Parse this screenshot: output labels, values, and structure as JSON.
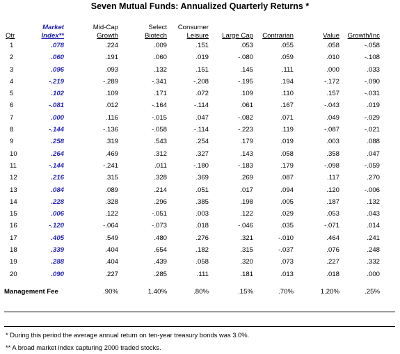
{
  "title": "Seven Mutual Funds:  Annualized Quarterly Returns *",
  "columns": [
    {
      "line1": "",
      "line2": "Qtr"
    },
    {
      "line1": "Market",
      "line2": "Index**"
    },
    {
      "line1": "Mid-Cap",
      "line2": "Growth"
    },
    {
      "line1": "Select",
      "line2": "Biotech"
    },
    {
      "line1": "Consumer",
      "line2": "Leisure"
    },
    {
      "line1": "",
      "line2": "Large Cap"
    },
    {
      "line1": "",
      "line2": "Contrarian"
    },
    {
      "line1": "",
      "line2": "Value"
    },
    {
      "line1": "",
      "line2": "Growth/Inc"
    }
  ],
  "rows": [
    [
      "1",
      ".078",
      ".224",
      ".009",
      ".151",
      ".053",
      ".055",
      ".058",
      "-.058"
    ],
    [
      "2",
      ".060",
      ".191",
      ".060",
      ".019",
      "-.080",
      ".059",
      ".010",
      "-.108"
    ],
    [
      "3",
      ".096",
      ".093",
      ".132",
      ".151",
      ".145",
      ".111",
      ".000",
      ".033"
    ],
    [
      "4",
      "-.219",
      "-.289",
      "-.341",
      "-.208",
      "-.195",
      ".194",
      "-.172",
      "-.090"
    ],
    [
      "5",
      ".102",
      ".109",
      ".171",
      ".072",
      ".109",
      ".110",
      ".157",
      "-.031"
    ],
    [
      "6",
      "-.081",
      ".012",
      "-.164",
      "-.114",
      ".061",
      ".167",
      "-.043",
      ".019"
    ],
    [
      "7",
      ".000",
      ".116",
      "-.015",
      ".047",
      "-.082",
      ".071",
      ".049",
      "-.029"
    ],
    [
      "8",
      "-.144",
      "-.136",
      "-.058",
      "-.114",
      "-.223",
      ".119",
      "-.087",
      "-.021"
    ],
    [
      "9",
      ".258",
      ".319",
      ".543",
      ".254",
      ".179",
      ".019",
      ".003",
      ".088"
    ],
    [
      "10",
      ".264",
      ".469",
      ".312",
      ".327",
      ".143",
      ".058",
      ".358",
      ".047"
    ],
    [
      "11",
      "-.144",
      "-.241",
      ".011",
      "-.180",
      "-.183",
      ".179",
      "-.098",
      "-.059"
    ],
    [
      "12",
      ".216",
      ".315",
      ".328",
      ".369",
      ".269",
      ".087",
      ".117",
      ".270"
    ],
    [
      "13",
      ".084",
      ".089",
      ".214",
      ".051",
      ".017",
      ".094",
      ".120",
      "-.006"
    ],
    [
      "14",
      ".228",
      ".328",
      ".296",
      ".385",
      ".198",
      ".005",
      ".187",
      ".132"
    ],
    [
      "15",
      ".006",
      ".122",
      "-.051",
      ".003",
      ".122",
      ".029",
      ".053",
      ".043"
    ],
    [
      "16",
      "-.120",
      "-.064",
      "-.073",
      ".018",
      "-.046",
      ".035",
      "-.071",
      ".014"
    ],
    [
      "17",
      ".405",
      ".549",
      ".480",
      ".276",
      ".321",
      "-.010",
      ".464",
      ".241"
    ],
    [
      "18",
      ".339",
      ".404",
      ".654",
      ".182",
      ".315",
      "-.037",
      ".076",
      ".248"
    ],
    [
      "19",
      ".288",
      ".404",
      ".439",
      ".058",
      ".320",
      ".073",
      ".227",
      ".332"
    ],
    [
      "20",
      ".090",
      ".227",
      ".285",
      ".111",
      ".181",
      ".013",
      ".018",
      ".000"
    ]
  ],
  "fee_row": [
    "Management Fee",
    "",
    ".90%",
    "1.40%",
    ".80%",
    ".15%",
    ".70%",
    "1.20%",
    ".25%"
  ],
  "footnotes": [
    "*  During this period the average annual return on ten-year treasury bonds was 3.0%.",
    "**  A broad market index capturing 2000 traded stocks."
  ],
  "colors": {
    "market_index": "#1f1fb4"
  }
}
